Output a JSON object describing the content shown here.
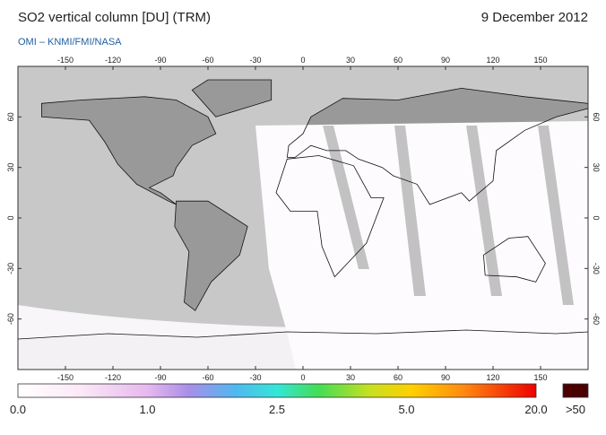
{
  "header": {
    "title": "SO2 vertical column [DU] (TRM)",
    "date": "9 December 2012",
    "subtitle": "OMI  –  KNMI/FMI/NASA"
  },
  "map": {
    "lon_ticks": [
      -150,
      -120,
      -90,
      -60,
      -30,
      0,
      30,
      60,
      90,
      120,
      150
    ],
    "lat_ticks": [
      60,
      30,
      0,
      -30,
      -60
    ],
    "lonlim": [
      -180,
      180
    ],
    "latlim": [
      90,
      -90
    ]
  },
  "colorbar": {
    "labels": [
      "0.0",
      "1.0",
      "2.5",
      "5.0",
      "20.0"
    ],
    "overflow_label": ">50"
  }
}
